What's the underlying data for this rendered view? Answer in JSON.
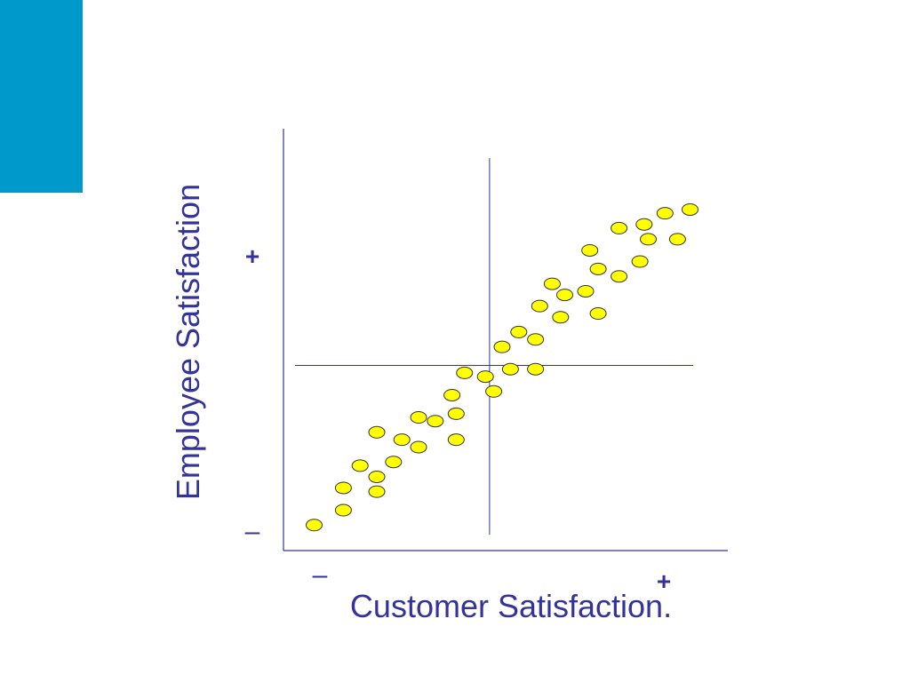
{
  "colors": {
    "accent": "#0099cc",
    "axis": "#333399",
    "text": "#333399",
    "point_fill": "#ffff00",
    "point_stroke": "#333333"
  },
  "chart_data": {
    "type": "scatter",
    "xlabel": "Customer  Satisfaction.",
    "ylabel": "Employee Satisfaction",
    "x_low_label": "–",
    "x_high_label": "+",
    "y_low_label": "–",
    "y_high_label": "+",
    "xlim": [
      0,
      100
    ],
    "ylim": [
      0,
      100
    ],
    "quadrant_divider": {
      "x": 47,
      "y": 47
    },
    "grid": false,
    "points": [
      {
        "x": 5,
        "y": 4
      },
      {
        "x": 12,
        "y": 8
      },
      {
        "x": 12,
        "y": 14
      },
      {
        "x": 16,
        "y": 20
      },
      {
        "x": 20,
        "y": 13
      },
      {
        "x": 20,
        "y": 17
      },
      {
        "x": 20,
        "y": 29
      },
      {
        "x": 24,
        "y": 21
      },
      {
        "x": 26,
        "y": 27
      },
      {
        "x": 30,
        "y": 25
      },
      {
        "x": 30,
        "y": 33
      },
      {
        "x": 34,
        "y": 32
      },
      {
        "x": 39,
        "y": 27
      },
      {
        "x": 39,
        "y": 34
      },
      {
        "x": 38,
        "y": 39
      },
      {
        "x": 41,
        "y": 45
      },
      {
        "x": 46,
        "y": 44
      },
      {
        "x": 48,
        "y": 40
      },
      {
        "x": 50,
        "y": 52
      },
      {
        "x": 52,
        "y": 46
      },
      {
        "x": 54,
        "y": 56
      },
      {
        "x": 58,
        "y": 46
      },
      {
        "x": 58,
        "y": 54
      },
      {
        "x": 59,
        "y": 63
      },
      {
        "x": 62,
        "y": 69
      },
      {
        "x": 64,
        "y": 60
      },
      {
        "x": 65,
        "y": 66
      },
      {
        "x": 70,
        "y": 67
      },
      {
        "x": 73,
        "y": 61
      },
      {
        "x": 73,
        "y": 73
      },
      {
        "x": 71,
        "y": 78
      },
      {
        "x": 78,
        "y": 71
      },
      {
        "x": 78,
        "y": 84
      },
      {
        "x": 83,
        "y": 75
      },
      {
        "x": 84,
        "y": 85
      },
      {
        "x": 85,
        "y": 81
      },
      {
        "x": 89,
        "y": 88
      },
      {
        "x": 92,
        "y": 81
      },
      {
        "x": 95,
        "y": 89
      }
    ]
  }
}
